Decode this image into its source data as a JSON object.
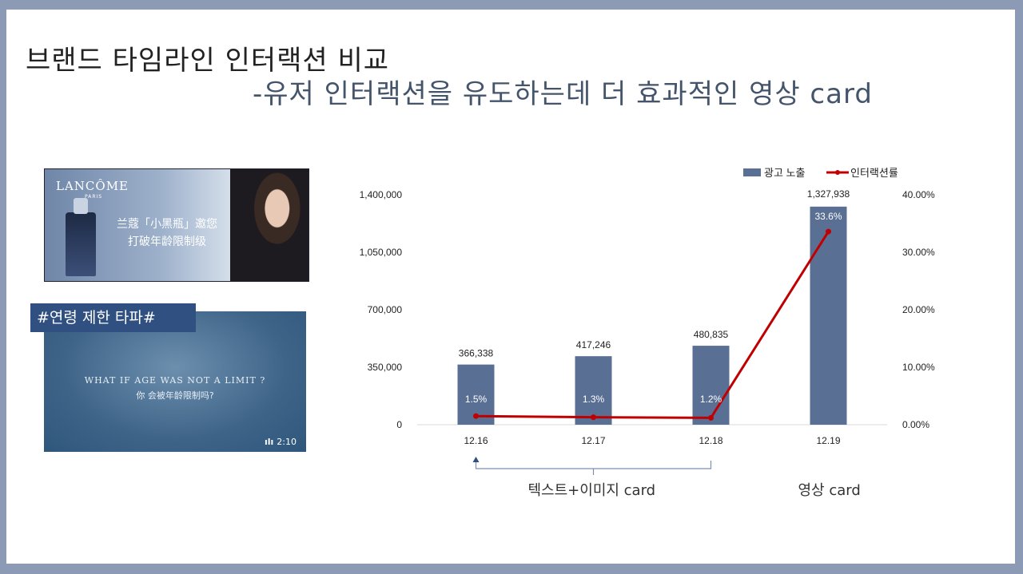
{
  "slide": {
    "title_line1": "브랜드 타임라인 인터랙션 비교",
    "title_line2": "-유저 인터랙션을 유도하는데 더 효과적인 영상 card"
  },
  "banner": {
    "logo": "LANCÔME",
    "paris": "PARIS",
    "caption_line1": "兰蔻「小黑瓶」邀您",
    "caption_line2": "打破年龄限制级"
  },
  "video_card": {
    "tag": "#연령 제한 타파#",
    "quote_en": "WHAT IF AGE WAS NOT A LIMIT ?",
    "quote_cn": "你  会被年龄限制吗?",
    "duration": "2:10"
  },
  "group_labels": {
    "text_image": "텍스트+이미지 card",
    "video": "영상 card"
  },
  "colors": {
    "bar": "#5a6f94",
    "line": "#c00000",
    "title2": "#44546a",
    "tag_bg": "#2f5080"
  },
  "chart_data": {
    "type": "bar",
    "categories": [
      "12.16",
      "12.17",
      "12.18",
      "12.19"
    ],
    "series": [
      {
        "name": "광고 노출",
        "type": "bar",
        "axis": "left",
        "values": [
          366338,
          417246,
          480835,
          1327938
        ],
        "labels": [
          "366,338",
          "417,246",
          "480,835",
          "1,327,938"
        ]
      },
      {
        "name": "인터랙션률",
        "type": "line",
        "axis": "right",
        "values": [
          1.5,
          1.3,
          1.2,
          33.6
        ],
        "labels": [
          "1.5%",
          "1.3%",
          "1.2%",
          "33.6%"
        ]
      }
    ],
    "y_left": {
      "ylim": [
        0,
        1400000
      ],
      "ticks": [
        "0",
        "350,000",
        "700,000",
        "1,050,000",
        "1,400,000"
      ]
    },
    "y_right": {
      "ylim": [
        0,
        40
      ],
      "ticks": [
        "0.00%",
        "10.00%",
        "20.00%",
        "30.00%",
        "40.00%"
      ]
    },
    "legend_position": "top-right",
    "grid": false
  }
}
